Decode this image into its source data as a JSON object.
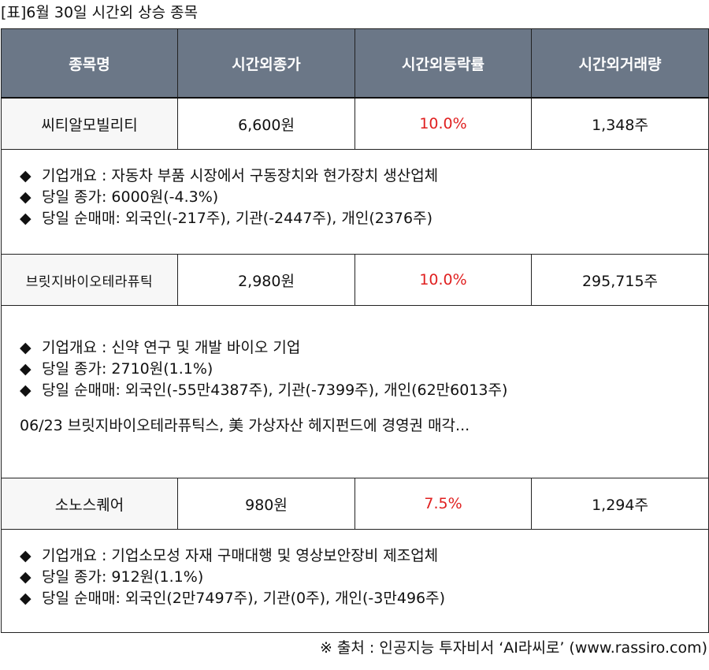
{
  "caption": "[표]6월 30일 시간외 상승 종목",
  "headers": [
    "종목명",
    "시간외종가",
    "시간외등락률",
    "시간외거래량"
  ],
  "bullet": "◆",
  "rows": [
    {
      "name": "씨티알모빌리티",
      "close": "6,600원",
      "rate": "10.0%",
      "volume": "1,348주",
      "details": [
        "기업개요 : 자동차 부품 시장에서 구동장치와 현가장치 생산업체",
        "당일 종가: 6000원(-4.3%)",
        "당일 순매매: 외국인(-217주), 기관(-2447주), 개인(2376주)"
      ],
      "news": ""
    },
    {
      "name": "브릿지바이오테라퓨틱",
      "close": "2,980원",
      "rate": "10.0%",
      "volume": "295,715주",
      "details": [
        "기업개요 : 신약 연구 및 개발 바이오 기업",
        "당일 종가: 2710원(1.1%)",
        "당일 순매매: 외국인(-55만4387주), 기관(-7399주), 개인(62만6013주)"
      ],
      "news": "06/23 브릿지바이오테라퓨틱스, 美 가상자산 헤지펀드에 경영권 매각..."
    },
    {
      "name": "소노스퀘어",
      "close": "980원",
      "rate": "7.5%",
      "volume": "1,294주",
      "details": [
        "기업개요 : 기업소모성 자재 구매대행 및 영상보안장비 제조업체",
        "당일 종가: 912원(1.1%)",
        "당일 순매매: 외국인(2만7497주), 기관(0주), 개인(-3만496주)"
      ],
      "news": ""
    }
  ],
  "source": "※ 출처 : 인공지능 투자비서 ‘AI라씨로’ (www.rassiro.com)",
  "colors": {
    "header_bg": "#6b7787",
    "header_text": "#ffffff",
    "rate_text": "#e02020"
  }
}
